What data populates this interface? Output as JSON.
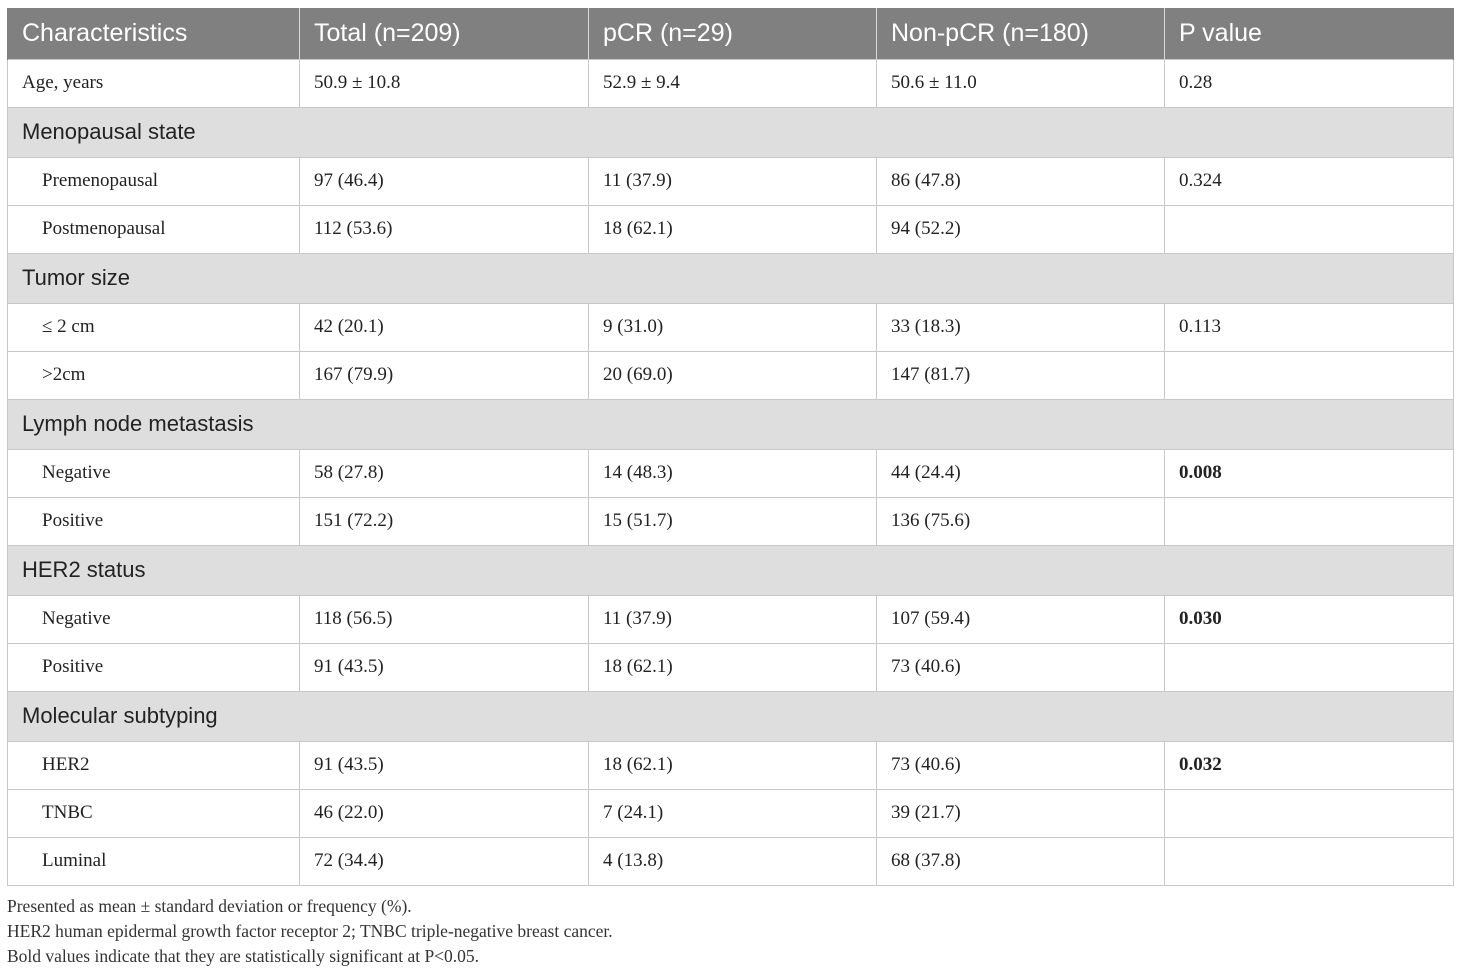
{
  "table": {
    "headers": [
      "Characteristics",
      "Total (n=209)",
      "pCR (n=29)",
      "Non-pCR (n=180)",
      "P value"
    ],
    "rows": [
      {
        "type": "data",
        "cells": [
          "Age, years",
          "50.9 ± 10.8",
          "52.9 ± 9.4",
          "50.6 ± 11.0",
          "0.28"
        ],
        "bold_p": false
      },
      {
        "type": "section",
        "label": "Menopausal state"
      },
      {
        "type": "data",
        "cells": [
          "Premenopausal",
          "97 (46.4)",
          "11 (37.9)",
          "86 (47.8)",
          "0.324"
        ],
        "bold_p": false
      },
      {
        "type": "data",
        "cells": [
          "Postmenopausal",
          "112 (53.6)",
          "18 (62.1)",
          "94 (52.2)",
          ""
        ],
        "bold_p": false
      },
      {
        "type": "section",
        "label": "Tumor size"
      },
      {
        "type": "data",
        "cells": [
          "≤ 2 cm",
          "42 (20.1)",
          "9 (31.0)",
          "33 (18.3)",
          "0.113"
        ],
        "bold_p": false
      },
      {
        "type": "data",
        "cells": [
          ">2cm",
          "167 (79.9)",
          "20 (69.0)",
          "147 (81.7)",
          ""
        ],
        "bold_p": false
      },
      {
        "type": "section",
        "label": "Lymph node metastasis"
      },
      {
        "type": "data",
        "cells": [
          "Negative",
          "58 (27.8)",
          "14 (48.3)",
          "44 (24.4)",
          "0.008"
        ],
        "bold_p": true
      },
      {
        "type": "data",
        "cells": [
          "Positive",
          "151 (72.2)",
          "15 (51.7)",
          "136 (75.6)",
          ""
        ],
        "bold_p": false
      },
      {
        "type": "section",
        "label": "HER2 status"
      },
      {
        "type": "data",
        "cells": [
          "Negative",
          "118 (56.5)",
          "11 (37.9)",
          "107 (59.4)",
          "0.030"
        ],
        "bold_p": true
      },
      {
        "type": "data",
        "cells": [
          "Positive",
          "91 (43.5)",
          "18 (62.1)",
          "73 (40.6)",
          ""
        ],
        "bold_p": false
      },
      {
        "type": "section",
        "label": "Molecular subtyping"
      },
      {
        "type": "data",
        "cells": [
          "HER2",
          "91 (43.5)",
          "18 (62.1)",
          "73 (40.6)",
          "0.032"
        ],
        "bold_p": true
      },
      {
        "type": "data",
        "cells": [
          "TNBC",
          "46 (22.0)",
          "7 (24.1)",
          "39 (21.7)",
          ""
        ],
        "bold_p": false
      },
      {
        "type": "data",
        "cells": [
          "Luminal",
          "72 (34.4)",
          "4 (13.8)",
          "68 (37.8)",
          ""
        ],
        "bold_p": false
      }
    ]
  },
  "footnotes": [
    "Presented as mean ± standard deviation or frequency (%).",
    "HER2 human epidermal growth factor receptor 2; TNBC triple-negative breast cancer.",
    "Bold values indicate that they are statistically significant at P<0.05."
  ],
  "colors": {
    "header_bg": "#808080",
    "section_bg": "#dedede"
  }
}
